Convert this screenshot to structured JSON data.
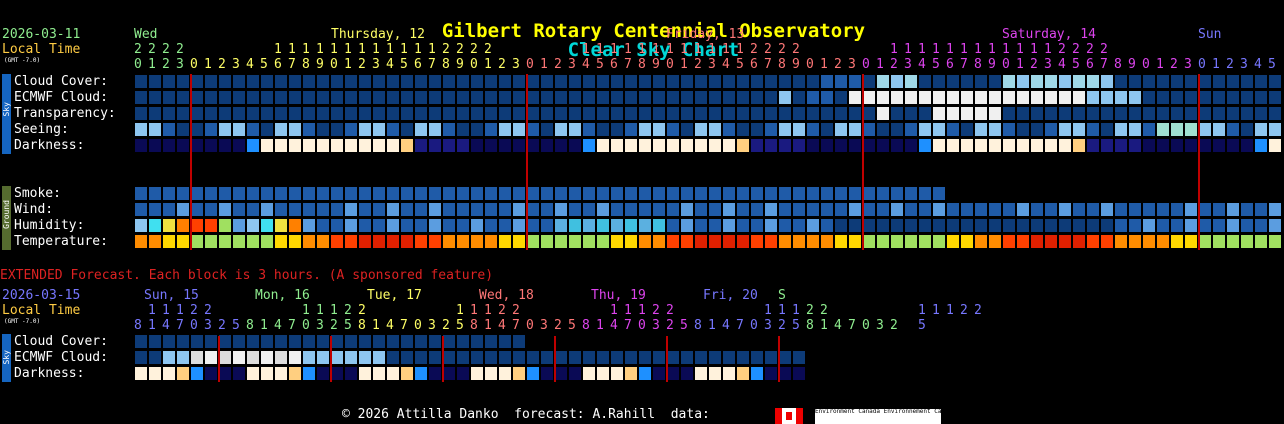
{
  "title": {
    "part1": "Gilbert Rotary Centennial Observatory",
    "part2": "Clear Sky Chart"
  },
  "header": {
    "date": "2026-03-11",
    "local_time": "Local Time",
    "gmt": "(GMT -7.0)",
    "days": [
      {
        "label": "Wed",
        "color": "#90ee90"
      },
      {
        "label": "Thursday, 12",
        "color": "#ffff66"
      },
      {
        "label": "Friday, 13",
        "color": "#ff7777"
      },
      {
        "label": "Saturday, 14",
        "color": "#dd44ee"
      },
      {
        "label": "Sun",
        "color": "#7777ff"
      }
    ]
  },
  "rows": {
    "cloud": "Cloud Cover:",
    "ecmwf": "ECMWF Cloud:",
    "transp": "Transparency:",
    "seeing": "Seeing:",
    "dark": "Darkness:",
    "smoke": "Smoke:",
    "wind": "Wind:",
    "humidity": "Humidity:",
    "temp": "Temperature:"
  },
  "side": {
    "sky": "Sky",
    "ground": "Ground"
  },
  "extended": {
    "note": "EXTENDED Forecast. Each block is 3 hours. (A sponsored feature)",
    "date": "2026-03-15",
    "local_time": "Local Time",
    "gmt": "(GMT -7.0)",
    "days": [
      {
        "label": "Sun, 15",
        "color": "#7777ff"
      },
      {
        "label": "Mon, 16",
        "color": "#90ee90"
      },
      {
        "label": "Tue, 17",
        "color": "#ffff66"
      },
      {
        "label": "Wed, 18",
        "color": "#ff7777"
      },
      {
        "label": "Thu, 19",
        "color": "#dd44ee"
      },
      {
        "label": "Fri, 20",
        "color": "#7777ff"
      },
      {
        "label": "S",
        "color": "#90ee90"
      }
    ],
    "rows": {
      "cloud": "Cloud Cover:",
      "ecmwf": "ECMWF Cloud:",
      "dark": "Darkness:"
    }
  },
  "footer": {
    "text": "© 2026 Attilla Danko  forecast: A.Rahill  data:",
    "ec1": "Environment Canada",
    "ec2": "Environnement Canada"
  },
  "hours_top": "0123012345678901234567890123012345678901234567890123012345678901234567890123012345",
  "hours_tens": "2222      1111111111112222      1111111111112222      1111111111112222",
  "hours_ext": "8147032581470325814703258147032581470325814703258147032 5",
  "ext_tens": " 11122      11122      11122      11122      11122      11122"
}
